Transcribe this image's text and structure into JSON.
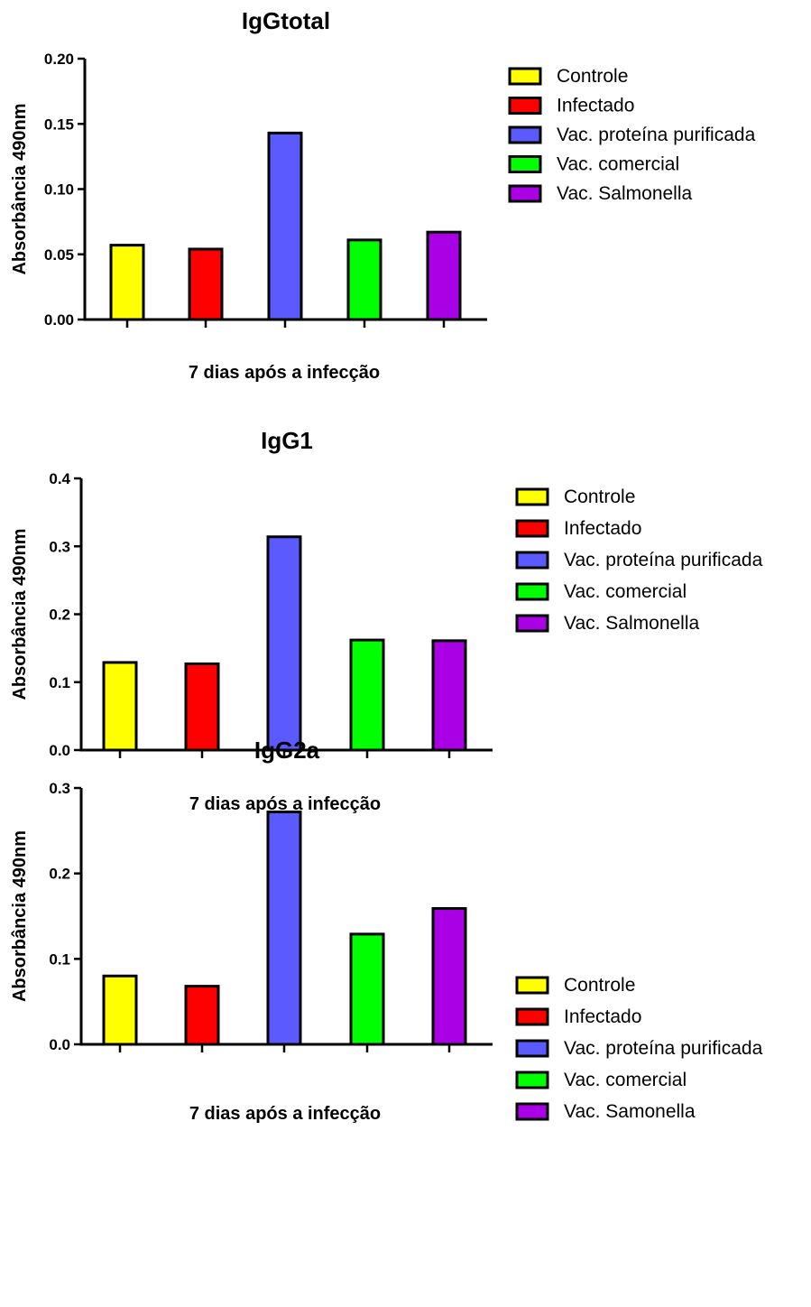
{
  "colors": {
    "yellow": "#ffff00",
    "red": "#ff0000",
    "blue": "#5a5aff",
    "green": "#00ff00",
    "purple": "#aa00e6"
  },
  "chart_data": [
    {
      "type": "bar",
      "title": "IgGtotal",
      "xlabel": "7 dias após a infecção",
      "ylabel": "Absorbância 490nm",
      "ylim": [
        0,
        0.2
      ],
      "yticks": [
        "0.00",
        "0.05",
        "0.10",
        "0.15",
        "0.20"
      ],
      "yticks_values": [
        0,
        0.05,
        0.1,
        0.15,
        0.2
      ],
      "categories": [
        "Controle",
        "Infectado",
        "Vac. proteína purificada",
        "Vac. comercial",
        "Vac. Salmonella"
      ],
      "values": [
        0.057,
        0.054,
        0.143,
        0.061,
        0.067
      ],
      "bar_colors": [
        "#ffff00",
        "#ff0000",
        "#5a5aff",
        "#00ff00",
        "#aa00e6"
      ],
      "legend": [
        "Controle",
        "Infectado",
        "Vac. proteína purificada",
        "Vac. comercial",
        "Vac. Salmonella"
      ],
      "legend_position": "right",
      "grid": false
    },
    {
      "type": "bar",
      "title": "IgG1",
      "xlabel": "7 dias após a infecção",
      "ylabel": "Absorbância 490nm",
      "ylim": [
        0,
        0.4
      ],
      "yticks": [
        "0.0",
        "0.1",
        "0.2",
        "0.3",
        "0.4"
      ],
      "yticks_values": [
        0,
        0.1,
        0.2,
        0.3,
        0.4
      ],
      "categories": [
        "Controle",
        "Infectado",
        "Vac. proteína purificada",
        "Vac. comercial",
        "Vac. Salmonella"
      ],
      "values": [
        0.129,
        0.127,
        0.314,
        0.162,
        0.161
      ],
      "bar_colors": [
        "#ffff00",
        "#ff0000",
        "#5a5aff",
        "#00ff00",
        "#aa00e6"
      ],
      "legend": [
        "Controle",
        "Infectado",
        "Vac. proteína purificada",
        "Vac. comercial",
        "Vac. Salmonella"
      ],
      "legend_position": "right",
      "grid": false
    },
    {
      "type": "bar",
      "title": "IgG2a",
      "xlabel": "7 dias após a infecção",
      "ylabel": "Absorbância 490nm",
      "ylim": [
        0,
        0.3
      ],
      "yticks": [
        "0.0",
        "0.1",
        "0.2",
        "0.3"
      ],
      "yticks_values": [
        0,
        0.1,
        0.2,
        0.3
      ],
      "categories": [
        "Controle",
        "Infectado",
        "Vac. proteína purificada",
        "Vac. comercial",
        "Vac. Samonella"
      ],
      "values": [
        0.08,
        0.068,
        0.272,
        0.129,
        0.159
      ],
      "bar_colors": [
        "#ffff00",
        "#ff0000",
        "#5a5aff",
        "#00ff00",
        "#aa00e6"
      ],
      "legend": [
        "Controle",
        "Infectado",
        "Vac. proteína purificada",
        "Vac. comercial",
        "Vac. Samonella"
      ],
      "legend_position": "right",
      "grid": false
    }
  ]
}
